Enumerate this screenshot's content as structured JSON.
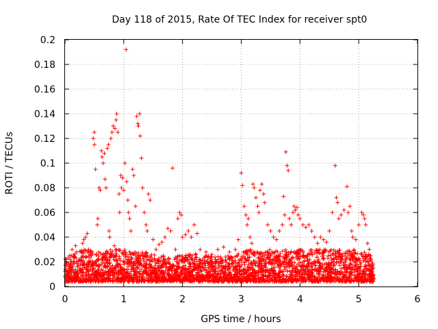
{
  "chart_data": {
    "type": "scatter",
    "title": "Day 118 of 2015, Rate Of TEC Index for receiver spt0",
    "xlabel": "GPS time / hours",
    "ylabel": "ROTI / TECUs",
    "xlim": [
      0,
      6
    ],
    "ylim": [
      0,
      0.2
    ],
    "grid": true,
    "marker": "plus",
    "color": "#ff0000",
    "xticks": [
      0,
      1,
      2,
      3,
      4,
      5,
      6
    ],
    "xtick_labels": [
      "0",
      "1",
      "2",
      "3",
      "4",
      "5",
      "6"
    ],
    "yticks": [
      0,
      0.02,
      0.04,
      0.06,
      0.08,
      0.1,
      0.12,
      0.14,
      0.16,
      0.18,
      0.2
    ],
    "ytick_labels": [
      "0",
      "0.02",
      "0.04",
      "0.06",
      "0.08",
      "0.1",
      "0.12",
      "0.14",
      "0.16",
      "0.18",
      "0.2"
    ],
    "series": [
      {
        "name": "spt0",
        "points": [
          [
            0.0,
            0.012
          ],
          [
            0.02,
            0.022
          ],
          [
            0.05,
            0.018
          ],
          [
            0.08,
            0.025
          ],
          [
            0.1,
            0.015
          ],
          [
            0.12,
            0.03
          ],
          [
            0.15,
            0.02
          ],
          [
            0.18,
            0.033
          ],
          [
            0.2,
            0.028
          ],
          [
            0.25,
            0.022
          ],
          [
            0.3,
            0.035
          ],
          [
            0.32,
            0.038
          ],
          [
            0.35,
            0.04
          ],
          [
            0.38,
            0.043
          ],
          [
            0.4,
            0.03
          ],
          [
            0.45,
            0.025
          ],
          [
            0.48,
            0.12
          ],
          [
            0.5,
            0.125
          ],
          [
            0.5,
            0.115
          ],
          [
            0.52,
            0.095
          ],
          [
            0.55,
            0.05
          ],
          [
            0.56,
            0.055
          ],
          [
            0.58,
            0.08
          ],
          [
            0.6,
            0.078
          ],
          [
            0.62,
            0.11
          ],
          [
            0.63,
            0.105
          ],
          [
            0.65,
            0.1
          ],
          [
            0.67,
            0.108
          ],
          [
            0.68,
            0.087
          ],
          [
            0.7,
            0.08
          ],
          [
            0.72,
            0.112
          ],
          [
            0.74,
            0.115
          ],
          [
            0.75,
            0.045
          ],
          [
            0.76,
            0.04
          ],
          [
            0.78,
            0.12
          ],
          [
            0.8,
            0.125
          ],
          [
            0.82,
            0.13
          ],
          [
            0.84,
            0.033
          ],
          [
            0.85,
            0.128
          ],
          [
            0.87,
            0.135
          ],
          [
            0.88,
            0.14
          ],
          [
            0.9,
            0.125
          ],
          [
            0.92,
            0.075
          ],
          [
            0.93,
            0.06
          ],
          [
            0.95,
            0.09
          ],
          [
            0.96,
            0.08
          ],
          [
            0.98,
            0.088
          ],
          [
            1.0,
            0.078
          ],
          [
            1.02,
            0.1
          ],
          [
            1.04,
            0.192
          ],
          [
            1.05,
            0.085
          ],
          [
            1.07,
            0.07
          ],
          [
            1.08,
            0.06
          ],
          [
            1.1,
            0.055
          ],
          [
            1.12,
            0.045
          ],
          [
            1.15,
            0.095
          ],
          [
            1.17,
            0.09
          ],
          [
            1.2,
            0.065
          ],
          [
            1.22,
            0.138
          ],
          [
            1.24,
            0.132
          ],
          [
            1.25,
            0.13
          ],
          [
            1.27,
            0.14
          ],
          [
            1.28,
            0.122
          ],
          [
            1.3,
            0.104
          ],
          [
            1.32,
            0.08
          ],
          [
            1.35,
            0.06
          ],
          [
            1.38,
            0.05
          ],
          [
            1.4,
            0.045
          ],
          [
            1.42,
            0.075
          ],
          [
            1.45,
            0.07
          ],
          [
            1.5,
            0.038
          ],
          [
            1.55,
            0.03
          ],
          [
            1.6,
            0.034
          ],
          [
            1.65,
            0.036
          ],
          [
            1.7,
            0.04
          ],
          [
            1.75,
            0.047
          ],
          [
            1.8,
            0.045
          ],
          [
            1.83,
            0.096
          ],
          [
            1.88,
            0.03
          ],
          [
            1.92,
            0.055
          ],
          [
            1.95,
            0.06
          ],
          [
            1.98,
            0.058
          ],
          [
            2.0,
            0.04
          ],
          [
            2.05,
            0.042
          ],
          [
            2.1,
            0.045
          ],
          [
            2.15,
            0.04
          ],
          [
            2.2,
            0.05
          ],
          [
            2.25,
            0.043
          ],
          [
            2.3,
            0.03
          ],
          [
            2.4,
            0.028
          ],
          [
            2.5,
            0.026
          ],
          [
            2.6,
            0.03
          ],
          [
            2.7,
            0.032
          ],
          [
            2.8,
            0.028
          ],
          [
            2.9,
            0.03
          ],
          [
            2.95,
            0.038
          ],
          [
            3.0,
            0.092
          ],
          [
            3.02,
            0.082
          ],
          [
            3.05,
            0.065
          ],
          [
            3.08,
            0.058
          ],
          [
            3.1,
            0.05
          ],
          [
            3.12,
            0.055
          ],
          [
            3.15,
            0.04
          ],
          [
            3.18,
            0.035
          ],
          [
            3.2,
            0.083
          ],
          [
            3.22,
            0.08
          ],
          [
            3.25,
            0.072
          ],
          [
            3.28,
            0.065
          ],
          [
            3.3,
            0.06
          ],
          [
            3.32,
            0.078
          ],
          [
            3.35,
            0.083
          ],
          [
            3.38,
            0.075
          ],
          [
            3.4,
            0.068
          ],
          [
            3.45,
            0.05
          ],
          [
            3.5,
            0.045
          ],
          [
            3.55,
            0.04
          ],
          [
            3.6,
            0.038
          ],
          [
            3.65,
            0.045
          ],
          [
            3.7,
            0.05
          ],
          [
            3.72,
            0.073
          ],
          [
            3.74,
            0.058
          ],
          [
            3.76,
            0.109
          ],
          [
            3.78,
            0.098
          ],
          [
            3.8,
            0.094
          ],
          [
            3.82,
            0.055
          ],
          [
            3.85,
            0.05
          ],
          [
            3.88,
            0.06
          ],
          [
            3.9,
            0.065
          ],
          [
            3.92,
            0.062
          ],
          [
            3.95,
            0.064
          ],
          [
            3.97,
            0.058
          ],
          [
            4.0,
            0.055
          ],
          [
            4.05,
            0.05
          ],
          [
            4.1,
            0.048
          ],
          [
            4.15,
            0.05
          ],
          [
            4.2,
            0.045
          ],
          [
            4.25,
            0.04
          ],
          [
            4.3,
            0.035
          ],
          [
            4.35,
            0.04
          ],
          [
            4.4,
            0.038
          ],
          [
            4.45,
            0.036
          ],
          [
            4.5,
            0.045
          ],
          [
            4.55,
            0.06
          ],
          [
            4.6,
            0.098
          ],
          [
            4.62,
            0.072
          ],
          [
            4.64,
            0.068
          ],
          [
            4.66,
            0.055
          ],
          [
            4.7,
            0.058
          ],
          [
            4.75,
            0.062
          ],
          [
            4.8,
            0.081
          ],
          [
            4.82,
            0.06
          ],
          [
            4.85,
            0.065
          ],
          [
            4.88,
            0.045
          ],
          [
            4.9,
            0.04
          ],
          [
            4.95,
            0.038
          ],
          [
            5.0,
            0.05
          ],
          [
            5.05,
            0.06
          ],
          [
            5.08,
            0.058
          ],
          [
            5.1,
            0.055
          ],
          [
            5.12,
            0.05
          ],
          [
            5.15,
            0.035
          ],
          [
            5.18,
            0.03
          ],
          [
            5.2,
            0.025
          ],
          [
            5.22,
            0.02
          ],
          [
            5.25,
            0.015
          ]
        ]
      }
    ],
    "band": {
      "x": [
        0.0,
        0.1,
        0.2,
        0.3,
        0.4,
        0.5,
        0.6,
        0.7,
        0.8,
        0.9,
        1.0,
        1.1,
        1.2,
        1.3,
        1.4,
        1.5,
        1.6,
        1.7,
        1.8,
        1.9,
        2.0,
        2.1,
        2.2,
        2.3,
        2.4,
        2.5,
        2.6,
        2.7,
        2.8,
        2.9,
        3.0,
        3.1,
        3.2,
        3.3,
        3.4,
        3.5,
        3.6,
        3.7,
        3.8,
        3.9,
        4.0,
        4.1,
        4.2,
        4.3,
        4.4,
        4.5,
        4.6,
        4.7,
        4.8,
        4.9,
        5.0,
        5.1,
        5.2,
        5.25
      ],
      "y_min": [
        0.004,
        0.004,
        0.004,
        0.004,
        0.004,
        0.004,
        0.004,
        0.004,
        0.004,
        0.004,
        0.004,
        0.004,
        0.004,
        0.004,
        0.004,
        0.004,
        0.004,
        0.004,
        0.004,
        0.004,
        0.004,
        0.004,
        0.004,
        0.004,
        0.004,
        0.004,
        0.004,
        0.004,
        0.004,
        0.004,
        0.004,
        0.004,
        0.004,
        0.004,
        0.004,
        0.004,
        0.004,
        0.004,
        0.004,
        0.004,
        0.004,
        0.004,
        0.004,
        0.004,
        0.004,
        0.004,
        0.004,
        0.004,
        0.004,
        0.004,
        0.004,
        0.004,
        0.004,
        0.004
      ],
      "y_max": [
        0.022,
        0.025,
        0.028,
        0.03,
        0.03,
        0.028,
        0.03,
        0.03,
        0.03,
        0.03,
        0.03,
        0.028,
        0.028,
        0.028,
        0.028,
        0.026,
        0.026,
        0.026,
        0.025,
        0.025,
        0.025,
        0.026,
        0.027,
        0.025,
        0.025,
        0.025,
        0.025,
        0.025,
        0.025,
        0.025,
        0.028,
        0.03,
        0.03,
        0.03,
        0.03,
        0.03,
        0.03,
        0.03,
        0.03,
        0.03,
        0.03,
        0.03,
        0.03,
        0.03,
        0.03,
        0.03,
        0.03,
        0.03,
        0.03,
        0.03,
        0.03,
        0.028,
        0.025,
        0.022
      ]
    }
  }
}
